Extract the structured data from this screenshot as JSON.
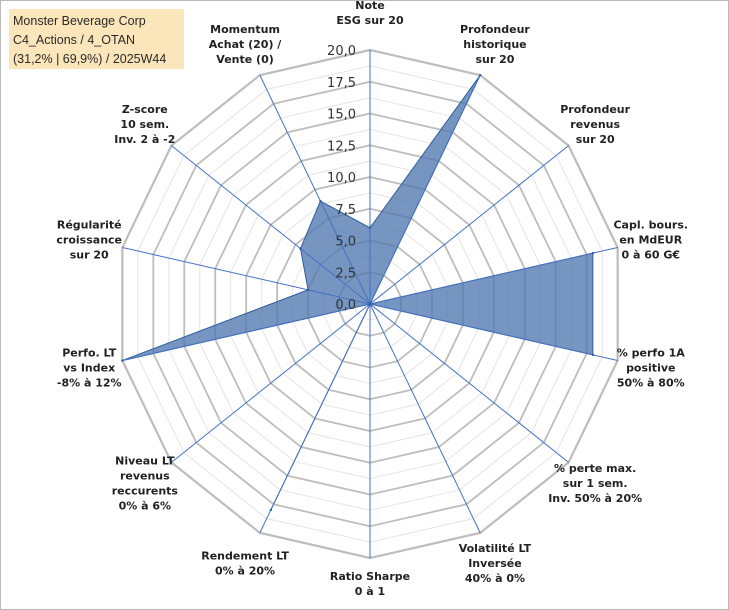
{
  "title": {
    "line1": "Monster Beverage Corp",
    "line2": "C4_Actions / 4_OTAN",
    "line3": "(31,2% | 69,9%) / 2025W44"
  },
  "colors": {
    "fill": "#4f78b0",
    "fill_opacity": "0.78",
    "polygon_stroke": "#2e5d9c",
    "grid_major": "#bdbdbd",
    "grid_minor": "#e4e4e4",
    "axis": "#4472c4",
    "title_bg": "#fbe5ba"
  },
  "chart_data": {
    "type": "radar",
    "rmin": 0,
    "rmax": 20,
    "ticks": [
      "0,0",
      "2,5",
      "5,0",
      "7,5",
      "10,0",
      "12,5",
      "15,0",
      "17,5",
      "20,0"
    ],
    "tick_values": [
      0,
      2.5,
      5,
      7.5,
      10,
      12.5,
      15,
      17.5,
      20
    ],
    "categories": [
      [
        "Note",
        "ESG sur 20"
      ],
      [
        "Profondeur",
        "historique",
        "sur 20"
      ],
      [
        "Profondeur",
        "revenus",
        "sur 20"
      ],
      [
        "Capl. bours.",
        "en MdEUR",
        "0 à 60 G€"
      ],
      [
        "% perfo 1A",
        "positive",
        "50% à 80%"
      ],
      [
        "% perte max.",
        "sur 1 sem.",
        "Inv. 50% à 20%"
      ],
      [
        "Volatilité LT",
        "Inversée",
        "40% à 0%"
      ],
      [
        "Ratio Sharpe",
        "0 à 1"
      ],
      [
        "Rendement LT",
        "0% à 20%"
      ],
      [
        "Niveau LT",
        "revenus",
        "reccurents",
        "0% à 6%"
      ],
      [
        "Perfo. LT",
        "vs Index",
        "-8% à 12%"
      ],
      [
        "Régularité",
        "croissance",
        "sur 20"
      ],
      [
        "Z-score",
        "10 sem.",
        "Inv. 2 à -2"
      ],
      [
        "Momentum",
        "Achat (20) /",
        "Vente (0)"
      ]
    ],
    "values": [
      6,
      20,
      0,
      18,
      18,
      0,
      0,
      0,
      18,
      0,
      20,
      5,
      7,
      9
    ]
  }
}
